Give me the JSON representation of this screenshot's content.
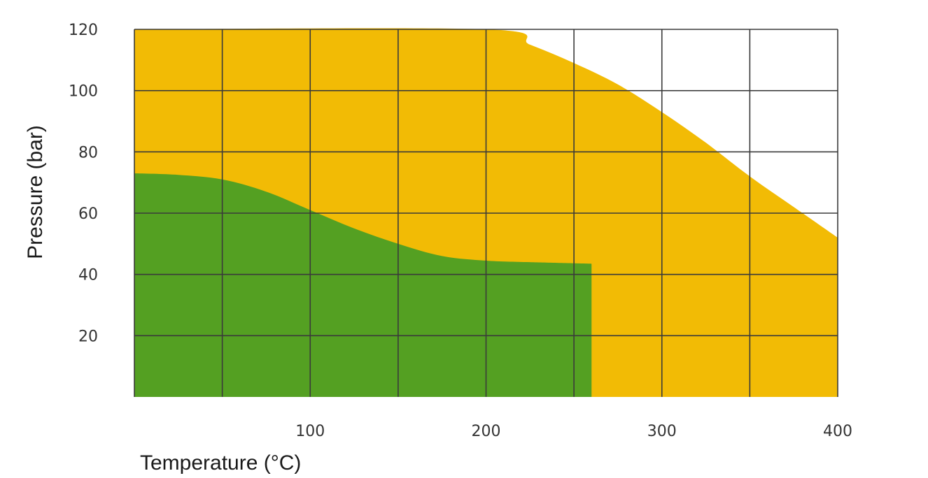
{
  "chart_data": {
    "type": "area",
    "xlabel": "Temperature (°C)",
    "ylabel": "Pressure (bar)",
    "xlim": [
      0,
      400
    ],
    "ylim": [
      0,
      120
    ],
    "x_ticks": [
      100,
      200,
      300,
      400
    ],
    "x_tick_labels": [
      "100",
      "200",
      "300",
      "400"
    ],
    "y_ticks": [
      20,
      40,
      60,
      80,
      100,
      120
    ],
    "y_tick_labels": [
      "20",
      "40",
      "60",
      "80",
      "100",
      "120"
    ],
    "grid": true,
    "grid_x_step": 50,
    "grid_y_step": 20,
    "series": [
      {
        "color": "#f2bb05",
        "boundary": [
          [
            0,
            120
          ],
          [
            200,
            120
          ],
          [
            225,
            115
          ],
          [
            250,
            109
          ],
          [
            275,
            102
          ],
          [
            300,
            93
          ],
          [
            325,
            83
          ],
          [
            350,
            72
          ],
          [
            375,
            62
          ],
          [
            400,
            52
          ],
          [
            400,
            0
          ]
        ]
      },
      {
        "color": "#54a022",
        "boundary": [
          [
            0,
            73
          ],
          [
            25,
            72.5
          ],
          [
            50,
            71
          ],
          [
            75,
            67
          ],
          [
            100,
            61
          ],
          [
            125,
            55
          ],
          [
            150,
            50
          ],
          [
            175,
            46
          ],
          [
            200,
            44.5
          ],
          [
            225,
            44
          ],
          [
            260,
            43.5
          ],
          [
            260,
            0
          ]
        ]
      }
    ]
  }
}
